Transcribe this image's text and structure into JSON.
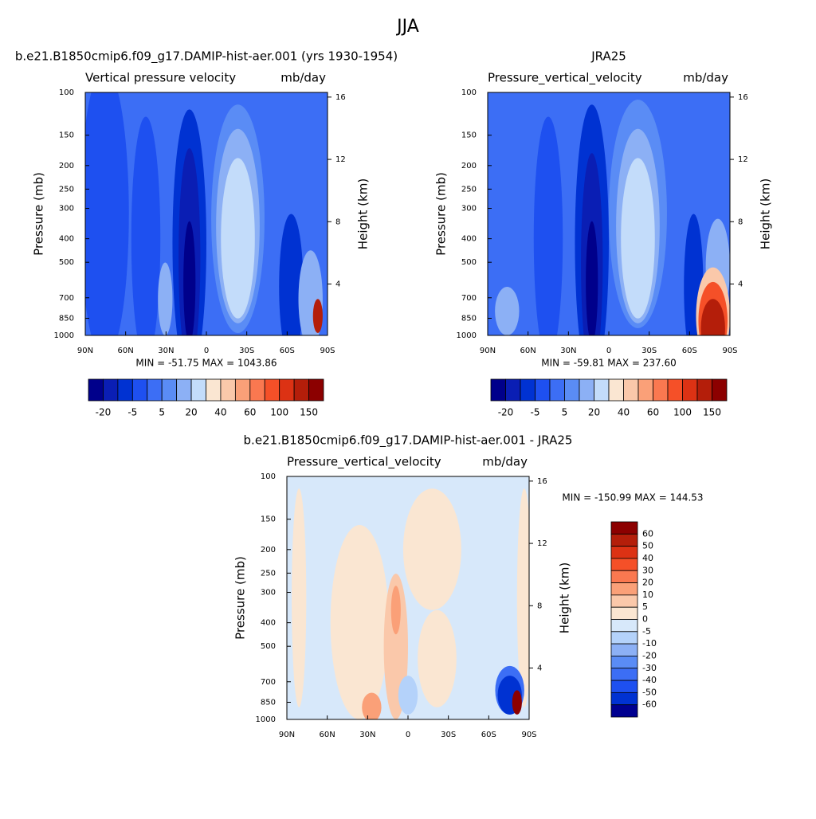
{
  "title": "JJA",
  "chart_data": [
    {
      "type": "contour",
      "title": "b.e21.B1850cmip6.f09_g17.DAMIP-hist-aer.001 (yrs 1930-1954)",
      "left_label": "Vertical pressure velocity",
      "right_label": "mb/day",
      "ylabel": "Pressure (mb)",
      "y2label": "Height (km)",
      "xlim": [
        90,
        -90
      ],
      "xticks": [
        {
          "value": 90,
          "label": "90N"
        },
        {
          "value": 60,
          "label": "60N"
        },
        {
          "value": 30,
          "label": "30N"
        },
        0,
        {
          "value": -30,
          "label": "30S"
        },
        {
          "value": -60,
          "label": "60S"
        },
        {
          "value": -90,
          "label": "90S"
        }
      ],
      "ylim": [
        1000,
        100
      ],
      "log_y": true,
      "yticks": [
        100,
        150,
        200,
        250,
        300,
        400,
        500,
        700,
        850,
        1000
      ],
      "y2lim": [
        0.7,
        16.3
      ],
      "y2ticks": [
        4,
        8,
        12,
        16
      ],
      "annotation": "MIN = -51.75  MAX = 1043.86",
      "colorbar": {
        "orientation": "horizontal",
        "colors": [
          "#00008b",
          "#0a1eb4",
          "#0032d2",
          "#1e50f0",
          "#3c6ef5",
          "#5a8cf5",
          "#8cb0f5",
          "#c3dcfa",
          "#fae6d2",
          "#fac8aa",
          "#faa078",
          "#fa7850",
          "#f55028",
          "#dc3214",
          "#b41e0a",
          "#8c0000"
        ],
        "labels": [
          -20,
          -5,
          5,
          20,
          40,
          60,
          100,
          150
        ]
      }
    },
    {
      "type": "contour",
      "title": "JRA25",
      "left_label": "Pressure_vertical_velocity",
      "right_label": "mb/day",
      "ylabel": "Pressure (mb)",
      "y2label": "Height (km)",
      "xlim": [
        90,
        -90
      ],
      "xticks": [
        {
          "value": 90,
          "label": "90N"
        },
        {
          "value": 60,
          "label": "60N"
        },
        {
          "value": 30,
          "label": "30N"
        },
        0,
        {
          "value": -30,
          "label": "30S"
        },
        {
          "value": -60,
          "label": "60S"
        },
        {
          "value": -90,
          "label": "90S"
        }
      ],
      "ylim": [
        1000,
        100
      ],
      "log_y": true,
      "yticks": [
        100,
        150,
        200,
        250,
        300,
        400,
        500,
        700,
        850,
        1000
      ],
      "y2lim": [
        0.7,
        16.3
      ],
      "y2ticks": [
        4,
        8,
        12,
        16
      ],
      "annotation": "MIN = -59.81  MAX = 237.60",
      "colorbar": {
        "orientation": "horizontal",
        "colors": [
          "#00008b",
          "#0a1eb4",
          "#0032d2",
          "#1e50f0",
          "#3c6ef5",
          "#5a8cf5",
          "#8cb0f5",
          "#c3dcfa",
          "#fae6d2",
          "#fac8aa",
          "#faa078",
          "#fa7850",
          "#f55028",
          "#dc3214",
          "#b41e0a",
          "#8c0000"
        ],
        "labels": [
          -20,
          -5,
          5,
          20,
          40,
          60,
          100,
          150
        ]
      }
    },
    {
      "type": "contour",
      "title": "b.e21.B1850cmip6.f09_g17.DAMIP-hist-aer.001 - JRA25",
      "left_label": "Pressure_vertical_velocity",
      "right_label": "mb/day",
      "ylabel": "Pressure (mb)",
      "y2label": "Height (km)",
      "xlim": [
        90,
        -90
      ],
      "xticks": [
        {
          "value": 90,
          "label": "90N"
        },
        {
          "value": 60,
          "label": "60N"
        },
        {
          "value": 30,
          "label": "30N"
        },
        0,
        {
          "value": -30,
          "label": "30S"
        },
        {
          "value": -60,
          "label": "60S"
        },
        {
          "value": -90,
          "label": "90S"
        }
      ],
      "ylim": [
        1000,
        100
      ],
      "log_y": true,
      "yticks": [
        100,
        150,
        200,
        250,
        300,
        400,
        500,
        700,
        850,
        1000
      ],
      "y2lim": [
        0.7,
        16.3
      ],
      "y2ticks": [
        4,
        8,
        12,
        16
      ],
      "annotation": "MIN = -150.99  MAX = 144.53",
      "colorbar": {
        "orientation": "vertical",
        "colors": [
          "#8c0000",
          "#b41e0a",
          "#dc3214",
          "#f55028",
          "#fa7850",
          "#faa078",
          "#fac8aa",
          "#fae6d2",
          "#d7e8fa",
          "#b4d2fa",
          "#8cb0f5",
          "#5a8cf5",
          "#3c6ef5",
          "#1e50f0",
          "#0032d2",
          "#000090"
        ],
        "labels": [
          60,
          50,
          40,
          30,
          20,
          10,
          5,
          0,
          -5,
          -10,
          -20,
          -30,
          -40,
          -50,
          -60
        ]
      }
    }
  ]
}
